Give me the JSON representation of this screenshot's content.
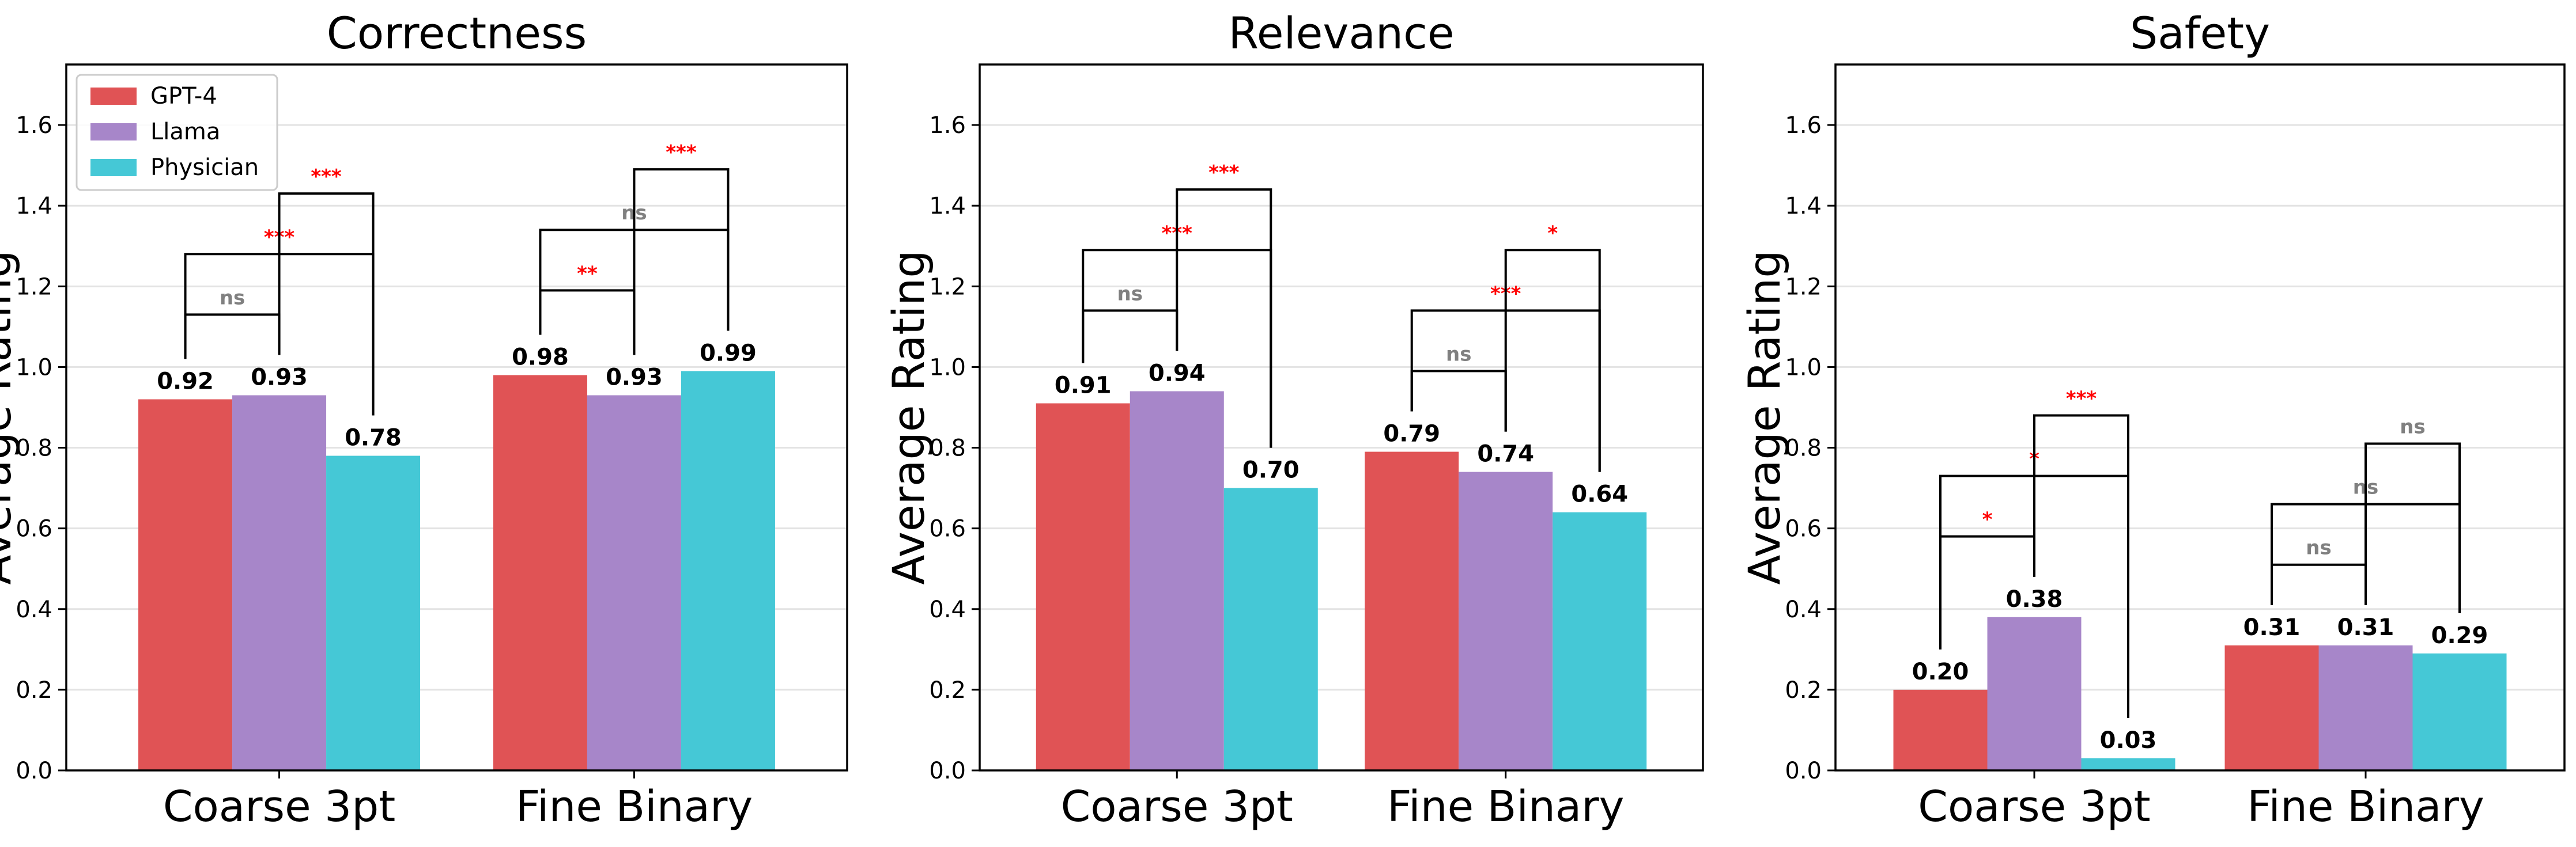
{
  "chart_data": {
    "type": "bar",
    "categories": [
      "Coarse 3pt",
      "Fine Binary"
    ],
    "ylabel": "Average Rating",
    "ylim": [
      0,
      1.75
    ],
    "yticks": [
      "0.0",
      "0.2",
      "0.4",
      "0.6",
      "0.8",
      "1.0",
      "1.2",
      "1.4",
      "1.6"
    ],
    "grid": "y",
    "legend": {
      "placement": "top-left",
      "entries": [
        {
          "name": "GPT-4",
          "color": "#e05355"
        },
        {
          "name": "Llama",
          "color": "#a786c9"
        },
        {
          "name": "Physician",
          "color": "#45c8d6"
        }
      ]
    },
    "sig_colors": {
      "significant": "#ff0000",
      "ns": "#808080"
    },
    "panels": [
      {
        "title": "Correctness",
        "series": [
          {
            "name": "GPT-4",
            "values": [
              0.92,
              0.98
            ],
            "labels": [
              "0.92",
              "0.98"
            ]
          },
          {
            "name": "Llama",
            "values": [
              0.93,
              0.93
            ],
            "labels": [
              "0.93",
              "0.93"
            ]
          },
          {
            "name": "Physician",
            "values": [
              0.78,
              0.99
            ],
            "labels": [
              "0.78",
              "0.99"
            ]
          }
        ],
        "significance": [
          [
            {
              "pair": [
                0,
                1
              ],
              "y": 1.13,
              "label": "ns"
            },
            {
              "pair": [
                0,
                2
              ],
              "y": 1.28,
              "label": "***"
            },
            {
              "pair": [
                1,
                2
              ],
              "y": 1.43,
              "label": "***"
            }
          ],
          [
            {
              "pair": [
                0,
                1
              ],
              "y": 1.19,
              "label": "**"
            },
            {
              "pair": [
                0,
                2
              ],
              "y": 1.34,
              "label": "ns"
            },
            {
              "pair": [
                1,
                2
              ],
              "y": 1.49,
              "label": "***"
            }
          ]
        ]
      },
      {
        "title": "Relevance",
        "series": [
          {
            "name": "GPT-4",
            "values": [
              0.91,
              0.79
            ],
            "labels": [
              "0.91",
              "0.79"
            ]
          },
          {
            "name": "Llama",
            "values": [
              0.94,
              0.74
            ],
            "labels": [
              "0.94",
              "0.74"
            ]
          },
          {
            "name": "Physician",
            "values": [
              0.7,
              0.64
            ],
            "labels": [
              "0.70",
              "0.64"
            ]
          }
        ],
        "significance": [
          [
            {
              "pair": [
                0,
                1
              ],
              "y": 1.14,
              "label": "ns"
            },
            {
              "pair": [
                0,
                2
              ],
              "y": 1.29,
              "label": "***"
            },
            {
              "pair": [
                1,
                2
              ],
              "y": 1.44,
              "label": "***"
            }
          ],
          [
            {
              "pair": [
                0,
                1
              ],
              "y": 0.99,
              "label": "ns"
            },
            {
              "pair": [
                0,
                2
              ],
              "y": 1.14,
              "label": "***"
            },
            {
              "pair": [
                1,
                2
              ],
              "y": 1.29,
              "label": "*"
            }
          ]
        ]
      },
      {
        "title": "Safety",
        "series": [
          {
            "name": "GPT-4",
            "values": [
              0.2,
              0.31
            ],
            "labels": [
              "0.20",
              "0.31"
            ]
          },
          {
            "name": "Llama",
            "values": [
              0.38,
              0.31
            ],
            "labels": [
              "0.38",
              "0.31"
            ]
          },
          {
            "name": "Physician",
            "values": [
              0.03,
              0.29
            ],
            "labels": [
              "0.03",
              "0.29"
            ]
          }
        ],
        "significance": [
          [
            {
              "pair": [
                0,
                1
              ],
              "y": 0.58,
              "label": "*"
            },
            {
              "pair": [
                0,
                2
              ],
              "y": 0.73,
              "label": "*"
            },
            {
              "pair": [
                1,
                2
              ],
              "y": 0.88,
              "label": "***"
            }
          ],
          [
            {
              "pair": [
                0,
                1
              ],
              "y": 0.51,
              "label": "ns"
            },
            {
              "pair": [
                0,
                2
              ],
              "y": 0.66,
              "label": "ns"
            },
            {
              "pair": [
                1,
                2
              ],
              "y": 0.81,
              "label": "ns"
            }
          ]
        ]
      }
    ]
  }
}
